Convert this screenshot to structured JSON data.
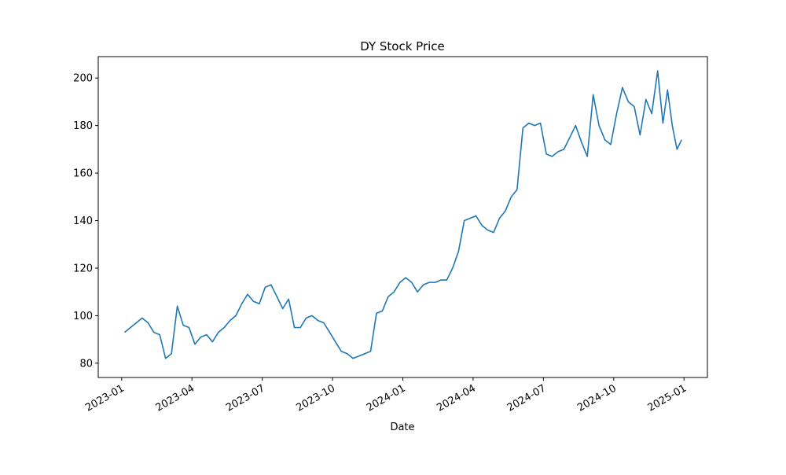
{
  "chart_data": {
    "type": "line",
    "title": "DY Stock Price",
    "xlabel": "Date",
    "x": [
      "2023-01",
      "2023-01",
      "2023-01",
      "2023-01",
      "2023-02",
      "2023-02",
      "2023-02",
      "2023-02",
      "2023-03",
      "2023-03",
      "2023-03",
      "2023-03",
      "2023-04",
      "2023-04",
      "2023-04",
      "2023-04",
      "2023-05",
      "2023-05",
      "2023-05",
      "2023-05",
      "2023-06",
      "2023-06",
      "2023-06",
      "2023-06",
      "2023-07",
      "2023-07",
      "2023-07",
      "2023-07",
      "2023-08",
      "2023-08",
      "2023-08",
      "2023-08",
      "2023-09",
      "2023-09",
      "2023-09",
      "2023-09",
      "2023-10",
      "2023-10",
      "2023-10",
      "2023-10",
      "2023-11",
      "2023-11",
      "2023-11",
      "2023-11",
      "2023-12",
      "2023-12",
      "2023-12",
      "2023-12",
      "2024-01",
      "2024-01",
      "2024-01",
      "2024-01",
      "2024-02",
      "2024-02",
      "2024-02",
      "2024-02",
      "2024-03",
      "2024-03",
      "2024-03",
      "2024-03",
      "2024-04",
      "2024-04",
      "2024-04",
      "2024-04",
      "2024-05",
      "2024-05",
      "2024-05",
      "2024-05",
      "2024-06",
      "2024-06",
      "2024-06",
      "2024-06",
      "2024-07",
      "2024-07",
      "2024-07",
      "2024-07",
      "2024-08",
      "2024-08",
      "2024-08",
      "2024-08",
      "2024-09",
      "2024-09",
      "2024-09",
      "2024-09",
      "2024-10",
      "2024-10",
      "2024-10",
      "2024-10",
      "2024-11",
      "2024-11",
      "2024-11",
      "2024-11",
      "2024-12",
      "2024-12",
      "2024-12",
      "2024-12",
      "2024-12"
    ],
    "series": [
      {
        "name": "DY",
        "color": "#1f77b4",
        "values": [
          93,
          95,
          97,
          99,
          97,
          93,
          92,
          82,
          84,
          104,
          96,
          95,
          88,
          91,
          92,
          89,
          93,
          95,
          98,
          100,
          105,
          109,
          106,
          105,
          112,
          113,
          108,
          103,
          107,
          95,
          95,
          99,
          100,
          98,
          97,
          93,
          89,
          85,
          84,
          82,
          83,
          84,
          85,
          101,
          102,
          108,
          110,
          114,
          116,
          114,
          110,
          113,
          114,
          114,
          115,
          115,
          120,
          127,
          140,
          141,
          142,
          138,
          136,
          135,
          141,
          144,
          150,
          153,
          179,
          181,
          180,
          181,
          168,
          167,
          169,
          170,
          175,
          180,
          173,
          167,
          193,
          180,
          174,
          172,
          185,
          196,
          190,
          188,
          176,
          191,
          185,
          203,
          181,
          195,
          180,
          170,
          174
        ]
      }
    ],
    "xlim": [
      "2022-12",
      "2025-02"
    ],
    "xticks": [
      "2023-01",
      "2023-04",
      "2023-07",
      "2023-10",
      "2024-01",
      "2024-04",
      "2024-07",
      "2024-10",
      "2025-01"
    ],
    "ylim": [
      74,
      209
    ],
    "yticks": [
      80,
      100,
      120,
      140,
      160,
      180,
      200
    ]
  }
}
